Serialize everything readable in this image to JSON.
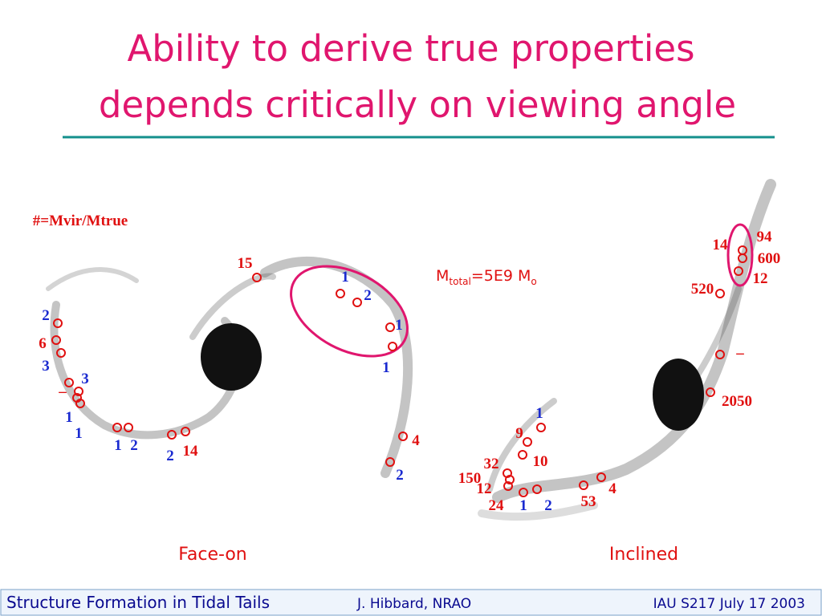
{
  "header": {
    "title_line1": "Ability to derive true properties",
    "title_line2": "depends critically on viewing angle"
  },
  "left_panel": {
    "legend": "#=Mvir/Mtrue",
    "labels": [
      "15",
      "1",
      "2",
      "1",
      "1",
      "4",
      "2",
      "2",
      "6",
      "3",
      "3",
      "–",
      "1",
      "1",
      "1",
      "2",
      "2",
      "14"
    ],
    "caption": "Face-on"
  },
  "right_panel": {
    "mass_note": {
      "m": "M",
      "sub1": "total",
      "eq": "=5E9 M",
      "sub2": "o"
    },
    "labels": [
      "94",
      "14",
      "600",
      "12",
      "520",
      "–",
      "2050",
      "1",
      "9",
      "10",
      "32",
      "150",
      "12",
      "24",
      "1",
      "2",
      "53",
      "4"
    ],
    "caption": "Inclined"
  },
  "footer": {
    "left": "Structure Formation in Tidal Tails",
    "middle": "J. Hibbard, NRAO",
    "right": "IAU S217  July 17 2003"
  }
}
